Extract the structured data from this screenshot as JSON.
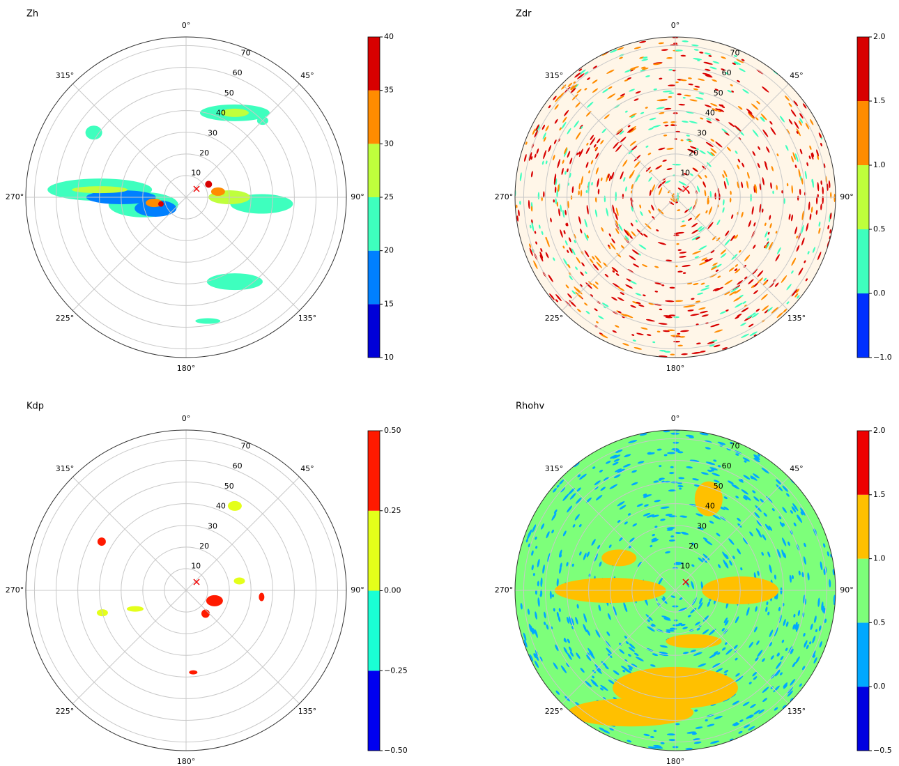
{
  "chart_data": [
    {
      "type": "polar",
      "title": "Zh",
      "thetaticks": [
        {
          "value": 0,
          "label": "0°"
        },
        {
          "value": 45,
          "label": "45°"
        },
        {
          "value": 90,
          "label": "90°"
        },
        {
          "value": 135,
          "label": "135°"
        },
        {
          "value": 180,
          "label": "180°"
        },
        {
          "value": 225,
          "label": "225°"
        },
        {
          "value": 270,
          "label": "270°"
        },
        {
          "value": 315,
          "label": "315°"
        }
      ],
      "rlim": [
        0,
        74
      ],
      "rticks": [
        10,
        20,
        30,
        40,
        50,
        60,
        70
      ],
      "colorbar": {
        "ticks": [
          10,
          15,
          20,
          25,
          30,
          35,
          40
        ],
        "colors": [
          "#0000d8",
          "#0080ff",
          "#3effbe",
          "#bfff3c",
          "#ff8c00",
          "#d80000"
        ]
      }
    },
    {
      "type": "polar",
      "title": "Zdr",
      "thetaticks": [
        {
          "value": 0,
          "label": "0°"
        },
        {
          "value": 45,
          "label": "45°"
        },
        {
          "value": 90,
          "label": "90°"
        },
        {
          "value": 135,
          "label": "135°"
        },
        {
          "value": 180,
          "label": "180°"
        },
        {
          "value": 225,
          "label": "225°"
        },
        {
          "value": 270,
          "label": "270°"
        },
        {
          "value": 315,
          "label": "315°"
        }
      ],
      "rlim": [
        0,
        74
      ],
      "rticks": [
        10,
        20,
        30,
        40,
        50,
        60,
        70
      ],
      "colorbar": {
        "ticks": [
          {
            "value": -1,
            "label": "−1.0"
          },
          {
            "value": 0,
            "label": "0.0"
          },
          {
            "value": 0.5,
            "label": "0.5"
          },
          {
            "value": 1,
            "label": "1.0"
          },
          {
            "value": 1.5,
            "label": "1.5"
          },
          {
            "value": 2,
            "label": "2.0"
          }
        ],
        "colors": [
          "#0030ff",
          "#3effbe",
          "#bfff3c",
          "#ff8c00",
          "#d80000"
        ]
      }
    },
    {
      "type": "polar",
      "title": "Kdp",
      "thetaticks": [
        {
          "value": 0,
          "label": "0°"
        },
        {
          "value": 45,
          "label": "45°"
        },
        {
          "value": 90,
          "label": "90°"
        },
        {
          "value": 135,
          "label": "135°"
        },
        {
          "value": 180,
          "label": "180°"
        },
        {
          "value": 225,
          "label": "225°"
        },
        {
          "value": 270,
          "label": "270°"
        },
        {
          "value": 315,
          "label": "315°"
        }
      ],
      "rlim": [
        0,
        74
      ],
      "rticks": [
        10,
        20,
        30,
        40,
        50,
        60,
        70
      ],
      "colorbar": {
        "ticks": [
          {
            "value": -0.5,
            "label": "−0.50"
          },
          {
            "value": -0.25,
            "label": "−0.25"
          },
          {
            "value": 0,
            "label": "0.00"
          },
          {
            "value": 0.25,
            "label": "0.25"
          },
          {
            "value": 0.5,
            "label": "0.50"
          }
        ],
        "colors": [
          "#0000f0",
          "#1affd5",
          "#e4ff1a",
          "#ff1a00"
        ]
      }
    },
    {
      "type": "polar",
      "title": "Rhohv",
      "thetaticks": [
        {
          "value": 0,
          "label": "0°"
        },
        {
          "value": 45,
          "label": "45°"
        },
        {
          "value": 90,
          "label": "90°"
        },
        {
          "value": 135,
          "label": "135°"
        },
        {
          "value": 180,
          "label": "180°"
        },
        {
          "value": 225,
          "label": "225°"
        },
        {
          "value": 270,
          "label": "270°"
        },
        {
          "value": 315,
          "label": "315°"
        }
      ],
      "rlim": [
        0,
        74
      ],
      "rticks": [
        10,
        20,
        30,
        40,
        50,
        60,
        70
      ],
      "colorbar": {
        "ticks": [
          {
            "value": -0.5,
            "label": "−0.5"
          },
          {
            "value": 0,
            "label": "0.0"
          },
          {
            "value": 0.5,
            "label": "0.5"
          },
          {
            "value": 1,
            "label": "1.0"
          },
          {
            "value": 1.5,
            "label": "1.5"
          },
          {
            "value": 2,
            "label": "2.0"
          }
        ],
        "colors": [
          "#0000e0",
          "#00a8ff",
          "#7dff7a",
          "#ffc000",
          "#ee0000"
        ]
      }
    }
  ]
}
